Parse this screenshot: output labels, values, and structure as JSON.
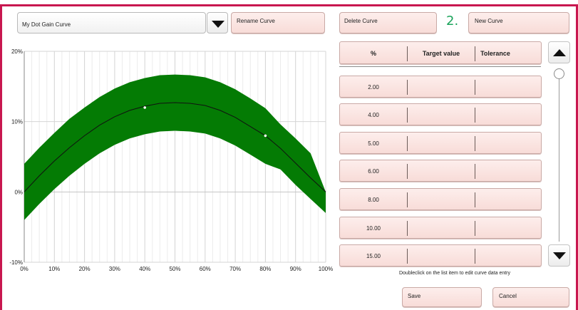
{
  "curve_selector": {
    "value": "My Dot Gain Curve"
  },
  "buttons": {
    "rename": "Rename Curve",
    "delete": "Delete Curve",
    "new": "New Curve",
    "save": "Save",
    "cancel": "Cancel"
  },
  "step_label": "2.",
  "table": {
    "headers": [
      "%",
      "Target value",
      "Tolerance"
    ],
    "rows": [
      {
        "pct": "2.00",
        "target": "",
        "tolerance": ""
      },
      {
        "pct": "4.00",
        "target": "",
        "tolerance": ""
      },
      {
        "pct": "5.00",
        "target": "",
        "tolerance": ""
      },
      {
        "pct": "6.00",
        "target": "",
        "tolerance": ""
      },
      {
        "pct": "8.00",
        "target": "",
        "tolerance": ""
      },
      {
        "pct": "10.00",
        "target": "",
        "tolerance": ""
      },
      {
        "pct": "15.00",
        "target": "",
        "tolerance": ""
      }
    ]
  },
  "hint": "Doubleclick on the list item to edit curve data entry",
  "colors": {
    "frame": "#c8174f",
    "band": "#047b04",
    "curve": "#111111",
    "step": "#1aa35a"
  },
  "chart_data": {
    "type": "area",
    "x_ticks": [
      "0%",
      "10%",
      "20%",
      "30%",
      "40%",
      "50%",
      "60%",
      "70%",
      "80%",
      "90%",
      "100%"
    ],
    "y_ticks": [
      "-10%",
      "0%",
      "10%",
      "20%"
    ],
    "xlim": [
      0,
      100
    ],
    "ylim": [
      -10,
      20
    ],
    "grid": true,
    "x": [
      0,
      5,
      10,
      15,
      20,
      25,
      30,
      35,
      40,
      45,
      50,
      55,
      60,
      65,
      70,
      75,
      80,
      85,
      90,
      95,
      100
    ],
    "series": [
      {
        "role": "target",
        "values": [
          0,
          2.3,
          4.4,
          6.3,
          8.0,
          9.5,
          10.7,
          11.6,
          12.2,
          12.6,
          12.7,
          12.6,
          12.3,
          11.6,
          10.6,
          9.3,
          8.0,
          6.2,
          4.1,
          2.0,
          0
        ]
      },
      {
        "role": "upper",
        "values": [
          4,
          6.3,
          8.4,
          10.4,
          12.0,
          13.5,
          14.7,
          15.6,
          16.2,
          16.6,
          16.7,
          16.6,
          16.3,
          15.6,
          14.6,
          13.3,
          11.9,
          9.6,
          7.6,
          5.5,
          0
        ]
      },
      {
        "role": "lower",
        "values": [
          -4,
          -1.7,
          0.4,
          2.3,
          4.0,
          5.5,
          6.7,
          7.6,
          8.2,
          8.6,
          8.7,
          8.6,
          8.3,
          7.6,
          6.6,
          5.3,
          4.0,
          3.2,
          1.0,
          -1.0,
          -3.0
        ]
      }
    ],
    "points": [
      {
        "x": 40,
        "y": 12.0
      },
      {
        "x": 80,
        "y": 8.0
      }
    ]
  }
}
